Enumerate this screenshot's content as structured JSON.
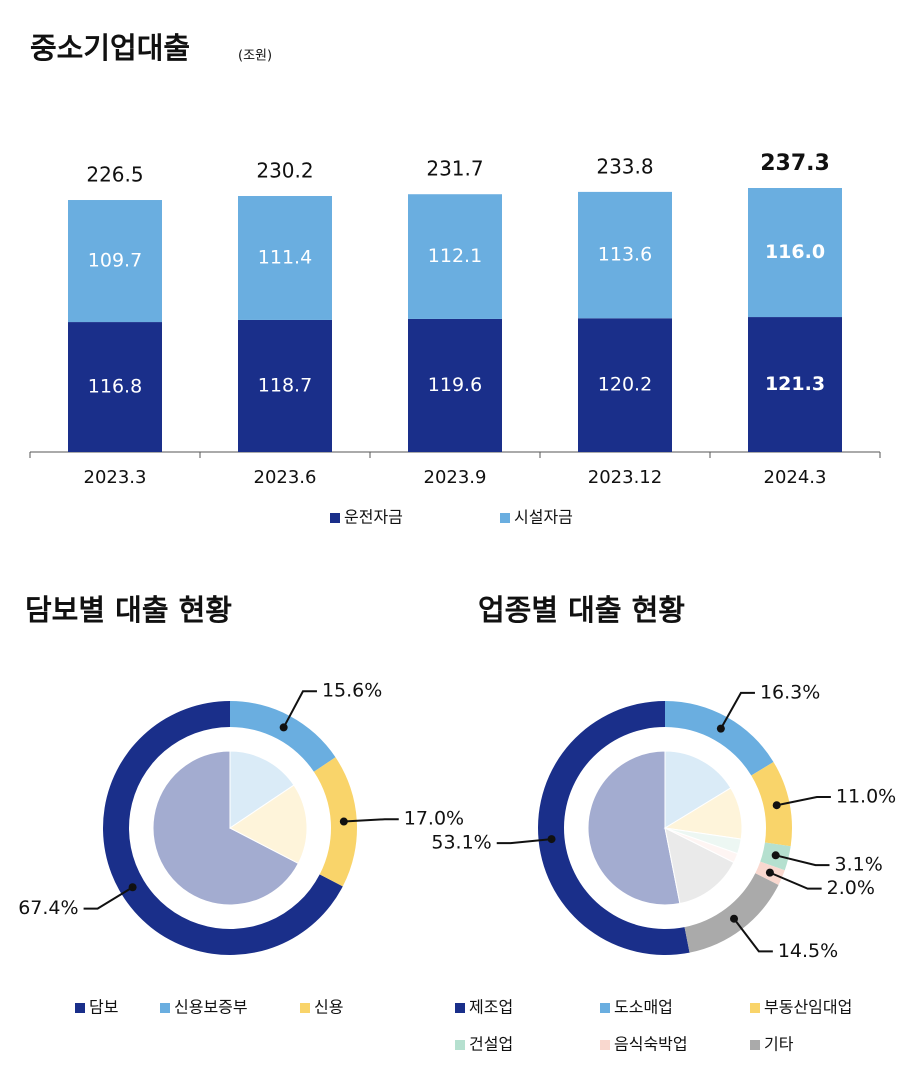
{
  "chart_data": [
    {
      "type": "bar",
      "stacked": true,
      "title": "중소기업대출",
      "subtitle": "(조원)",
      "categories": [
        "2023.3",
        "2023.6",
        "2023.9",
        "2023.12",
        "2024.3"
      ],
      "series": [
        {
          "name": "운전자금",
          "color": "#1a2f8a",
          "values": [
            116.8,
            118.7,
            119.6,
            120.2,
            121.3
          ]
        },
        {
          "name": "시설자금",
          "color": "#6aaee0",
          "values": [
            109.7,
            111.4,
            112.1,
            113.6,
            116.0
          ],
          "value_labels": [
            "109.7",
            "111.4",
            "112.1",
            "113.6",
            "116.0"
          ]
        }
      ],
      "totals": [
        226.5,
        230.2,
        231.7,
        233.8,
        237.3
      ]
    },
    {
      "type": "pie",
      "title": "담보별 대출 현황",
      "categories": [
        "담보",
        "신용보증부",
        "신용"
      ],
      "values": [
        67.4,
        15.6,
        17.0
      ],
      "value_labels": [
        "67.4%",
        "15.6%",
        "17.0%"
      ],
      "colors": [
        "#1a2f8a",
        "#6aaee0",
        "#f9d46a"
      ]
    },
    {
      "type": "pie",
      "title": "업종별 대출 현황",
      "categories": [
        "제조업",
        "도소매업",
        "부동산임대업",
        "건설업",
        "음식숙박업",
        "기타"
      ],
      "values": [
        53.1,
        16.3,
        11.0,
        3.1,
        2.0,
        14.5
      ],
      "value_labels": [
        "53.1%",
        "16.3%",
        "11.0%",
        "3.1%",
        "2.0%",
        "14.5%"
      ],
      "colors": [
        "#1a2f8a",
        "#6aaee0",
        "#f9d46a",
        "#b5e0cf",
        "#f9d8cf",
        "#aaaaaa"
      ]
    }
  ]
}
